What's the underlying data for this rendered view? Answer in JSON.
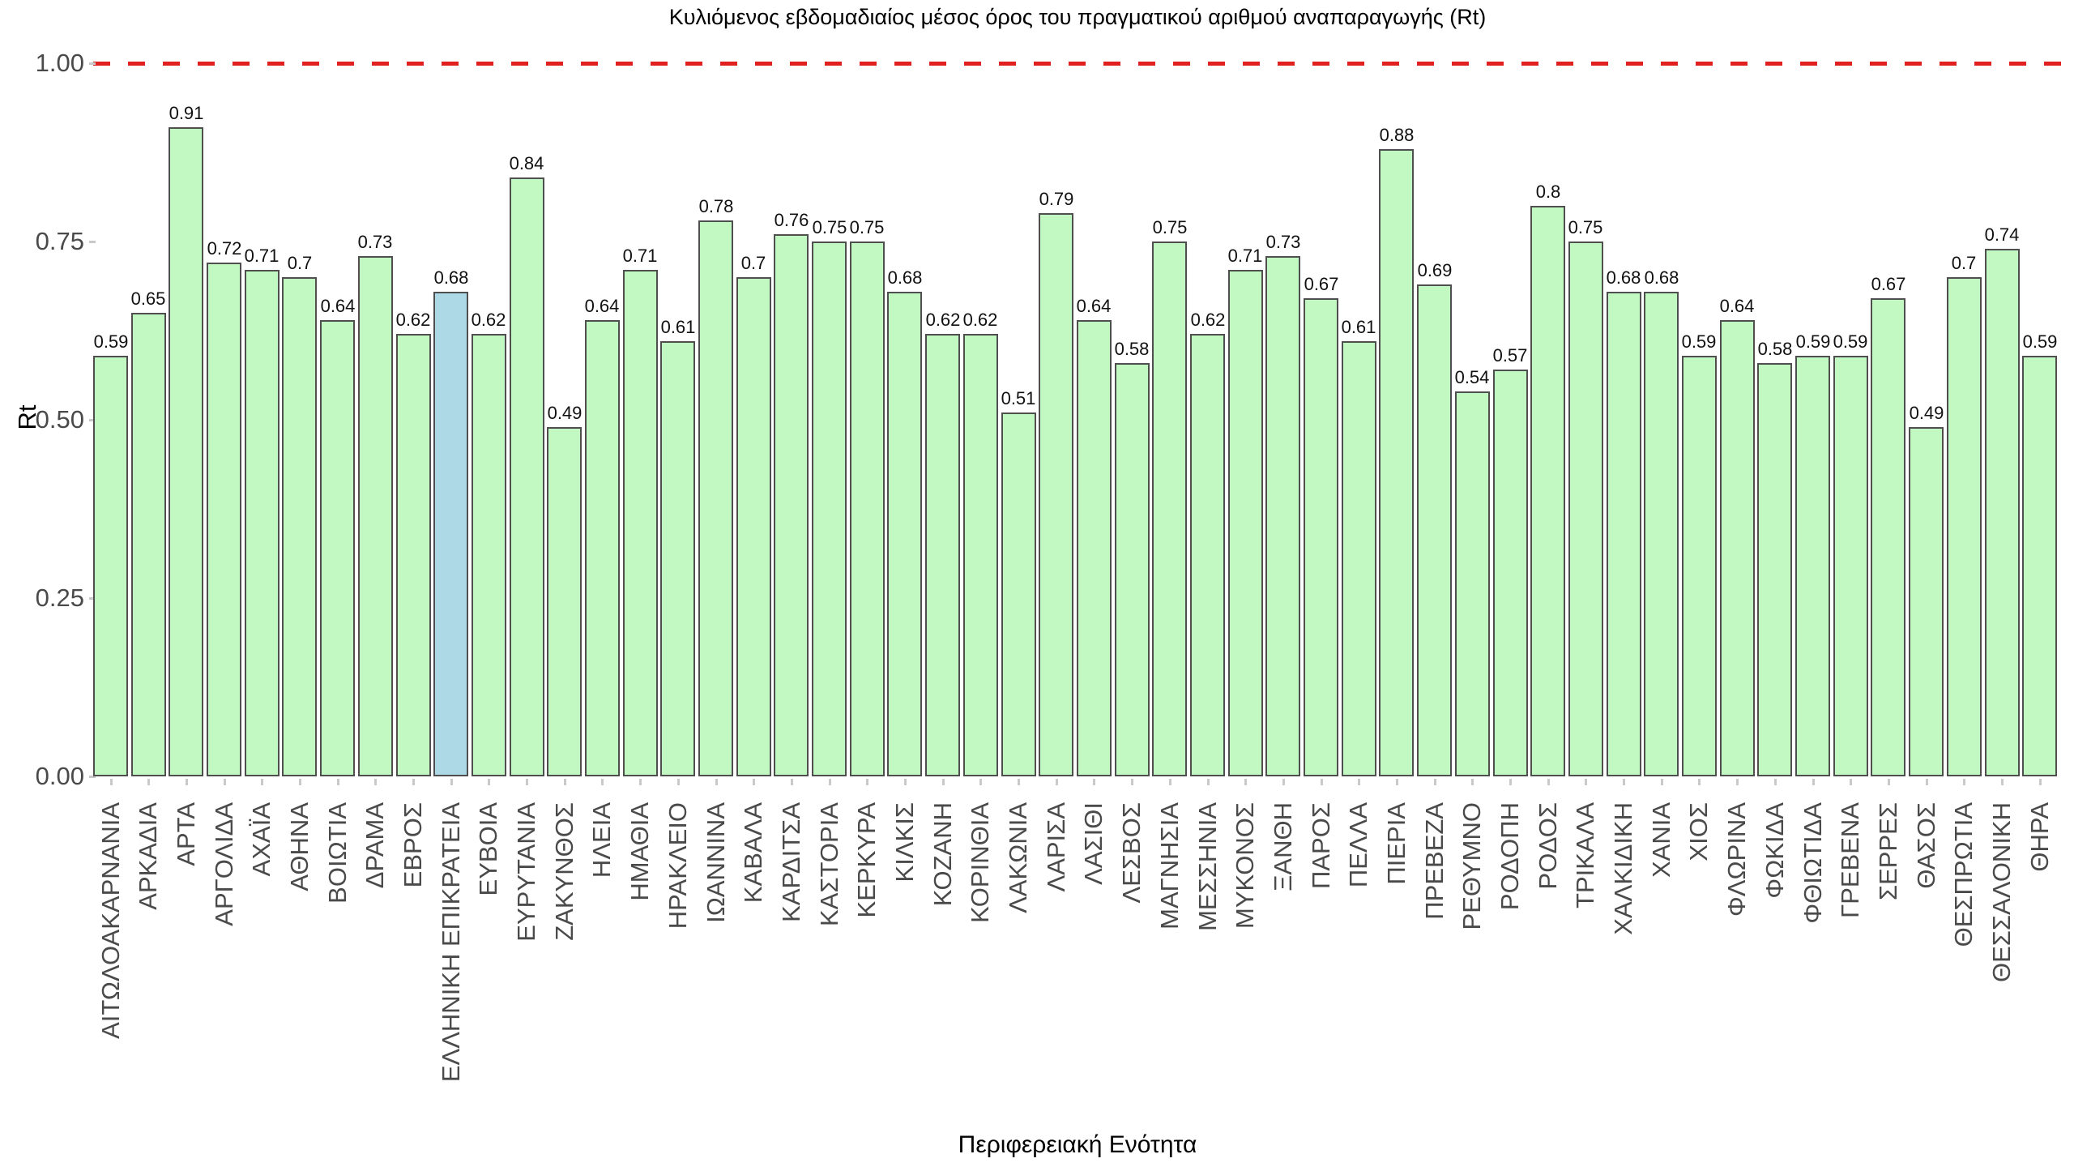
{
  "chart_data": {
    "type": "bar",
    "title": "Κυλιόμενος εβδομαδιαίος μέσος όρος του πραγματικού αριθμού αναπαραγωγής (Rt)",
    "xlabel": "Περιφερειακή Ενότητα",
    "ylabel": "Rt",
    "ylim": [
      0,
      1.05
    ],
    "yticks": [
      "0.00",
      "0.25",
      "0.50",
      "0.75",
      "1.00"
    ],
    "ytick_values": [
      0,
      0.25,
      0.5,
      0.75,
      1.0
    ],
    "grid": "off",
    "legend": "none",
    "reference_line": {
      "value": 1.0,
      "style": "dashed"
    },
    "highlight_category": "ΕΛΛΗΝΙΚΗ ΕΠΙΚΡΑΤΕΙΑ",
    "categories": [
      "ΑΙΤΩΛΟΑΚΑΡΝΑΝΙΑ",
      "ΑΡΚΑΔΙΑ",
      "ΑΡΤΑ",
      "ΑΡΓΟΛΙΔΑ",
      "ΑΧΑΪΑ",
      "ΑΘΗΝΑ",
      "ΒΟΙΩΤΙΑ",
      "ΔΡΑΜΑ",
      "ΕΒΡΟΣ",
      "ΕΛΛΗΝΙΚΗ ΕΠΙΚΡΑΤΕΙΑ",
      "ΕΥΒΟΙΑ",
      "ΕΥΡΥΤΑΝΙΑ",
      "ΖΑΚΥΝΘΟΣ",
      "ΗΛΕΙΑ",
      "ΗΜΑΘΙΑ",
      "ΗΡΑΚΛΕΙΟ",
      "ΙΩΑΝΝΙΝΑ",
      "ΚΑΒΑΛΑ",
      "ΚΑΡΔΙΤΣΑ",
      "ΚΑΣΤΟΡΙΑ",
      "ΚΕΡΚΥΡΑ",
      "ΚΙΛΚΙΣ",
      "ΚΟΖΑΝΗ",
      "ΚΟΡΙΝΘΙΑ",
      "ΛΑΚΩΝΙΑ",
      "ΛΑΡΙΣΑ",
      "ΛΑΣΙΘΙ",
      "ΛΕΣΒΟΣ",
      "ΜΑΓΝΗΣΙΑ",
      "ΜΕΣΣΗΝΙΑ",
      "ΜΥΚΟΝΟΣ",
      "ΞΑΝΘΗ",
      "ΠΑΡΟΣ",
      "ΠΕΛΛΑ",
      "ΠΙΕΡΙΑ",
      "ΠΡΕΒΕΖΑ",
      "ΡΕΘΥΜΝΟ",
      "ΡΟΔΟΠΗ",
      "ΡΟΔΟΣ",
      "ΤΡΙΚΑΛΑ",
      "ΧΑΛΚΙΔΙΚΗ",
      "ΧΑΝΙΑ",
      "ΧΙΟΣ",
      "ΦΛΩΡΙΝΑ",
      "ΦΩΚΙΔΑ",
      "ΦΘΙΩΤΙΔΑ",
      "ΓΡΕΒΕΝΑ",
      "ΣΕΡΡΕΣ",
      "ΘΑΣΟΣ",
      "ΘΕΣΠΡΩΤΙΑ",
      "ΘΕΣΣΑΛΟΝΙΚΗ",
      "ΘΗΡΑ"
    ],
    "values": [
      0.59,
      0.65,
      0.91,
      0.72,
      0.71,
      0.7,
      0.64,
      0.73,
      0.62,
      0.68,
      0.62,
      0.84,
      0.49,
      0.64,
      0.71,
      0.61,
      0.78,
      0.7,
      0.76,
      0.75,
      0.75,
      0.68,
      0.62,
      0.62,
      0.51,
      0.79,
      0.64,
      0.58,
      0.75,
      0.62,
      0.71,
      0.73,
      0.67,
      0.61,
      0.88,
      0.69,
      0.54,
      0.57,
      0.8,
      0.75,
      0.68,
      0.68,
      0.59,
      0.64,
      0.58,
      0.59,
      0.59,
      0.67,
      0.49,
      0.7,
      0.74,
      0.59
    ],
    "value_labels": [
      "0.59",
      "0.65",
      "0.91",
      "0.72",
      "0.71",
      "0.7",
      "0.64",
      "0.73",
      "0.62",
      "0.68",
      "0.62",
      "0.84",
      "0.49",
      "0.64",
      "0.71",
      "0.61",
      "0.78",
      "0.7",
      "0.76",
      "0.75",
      "0.75",
      "0.68",
      "0.62",
      "0.62",
      "0.51",
      "0.79",
      "0.64",
      "0.58",
      "0.75",
      "0.62",
      "0.71",
      "0.73",
      "0.67",
      "0.61",
      "0.88",
      "0.69",
      "0.54",
      "0.57",
      "0.8",
      "0.75",
      "0.68",
      "0.68",
      "0.59",
      "0.64",
      "0.58",
      "0.59",
      "0.59",
      "0.67",
      "0.49",
      "0.7",
      "0.74",
      "0.59"
    ]
  },
  "colors": {
    "bar_fill": "#c2f8c2",
    "bar_highlight_fill": "#add8e6",
    "bar_border": "#4f4f4f",
    "reference_line": "#e12120",
    "tick_text": "#4a4a4a",
    "title_text": "#000000"
  }
}
